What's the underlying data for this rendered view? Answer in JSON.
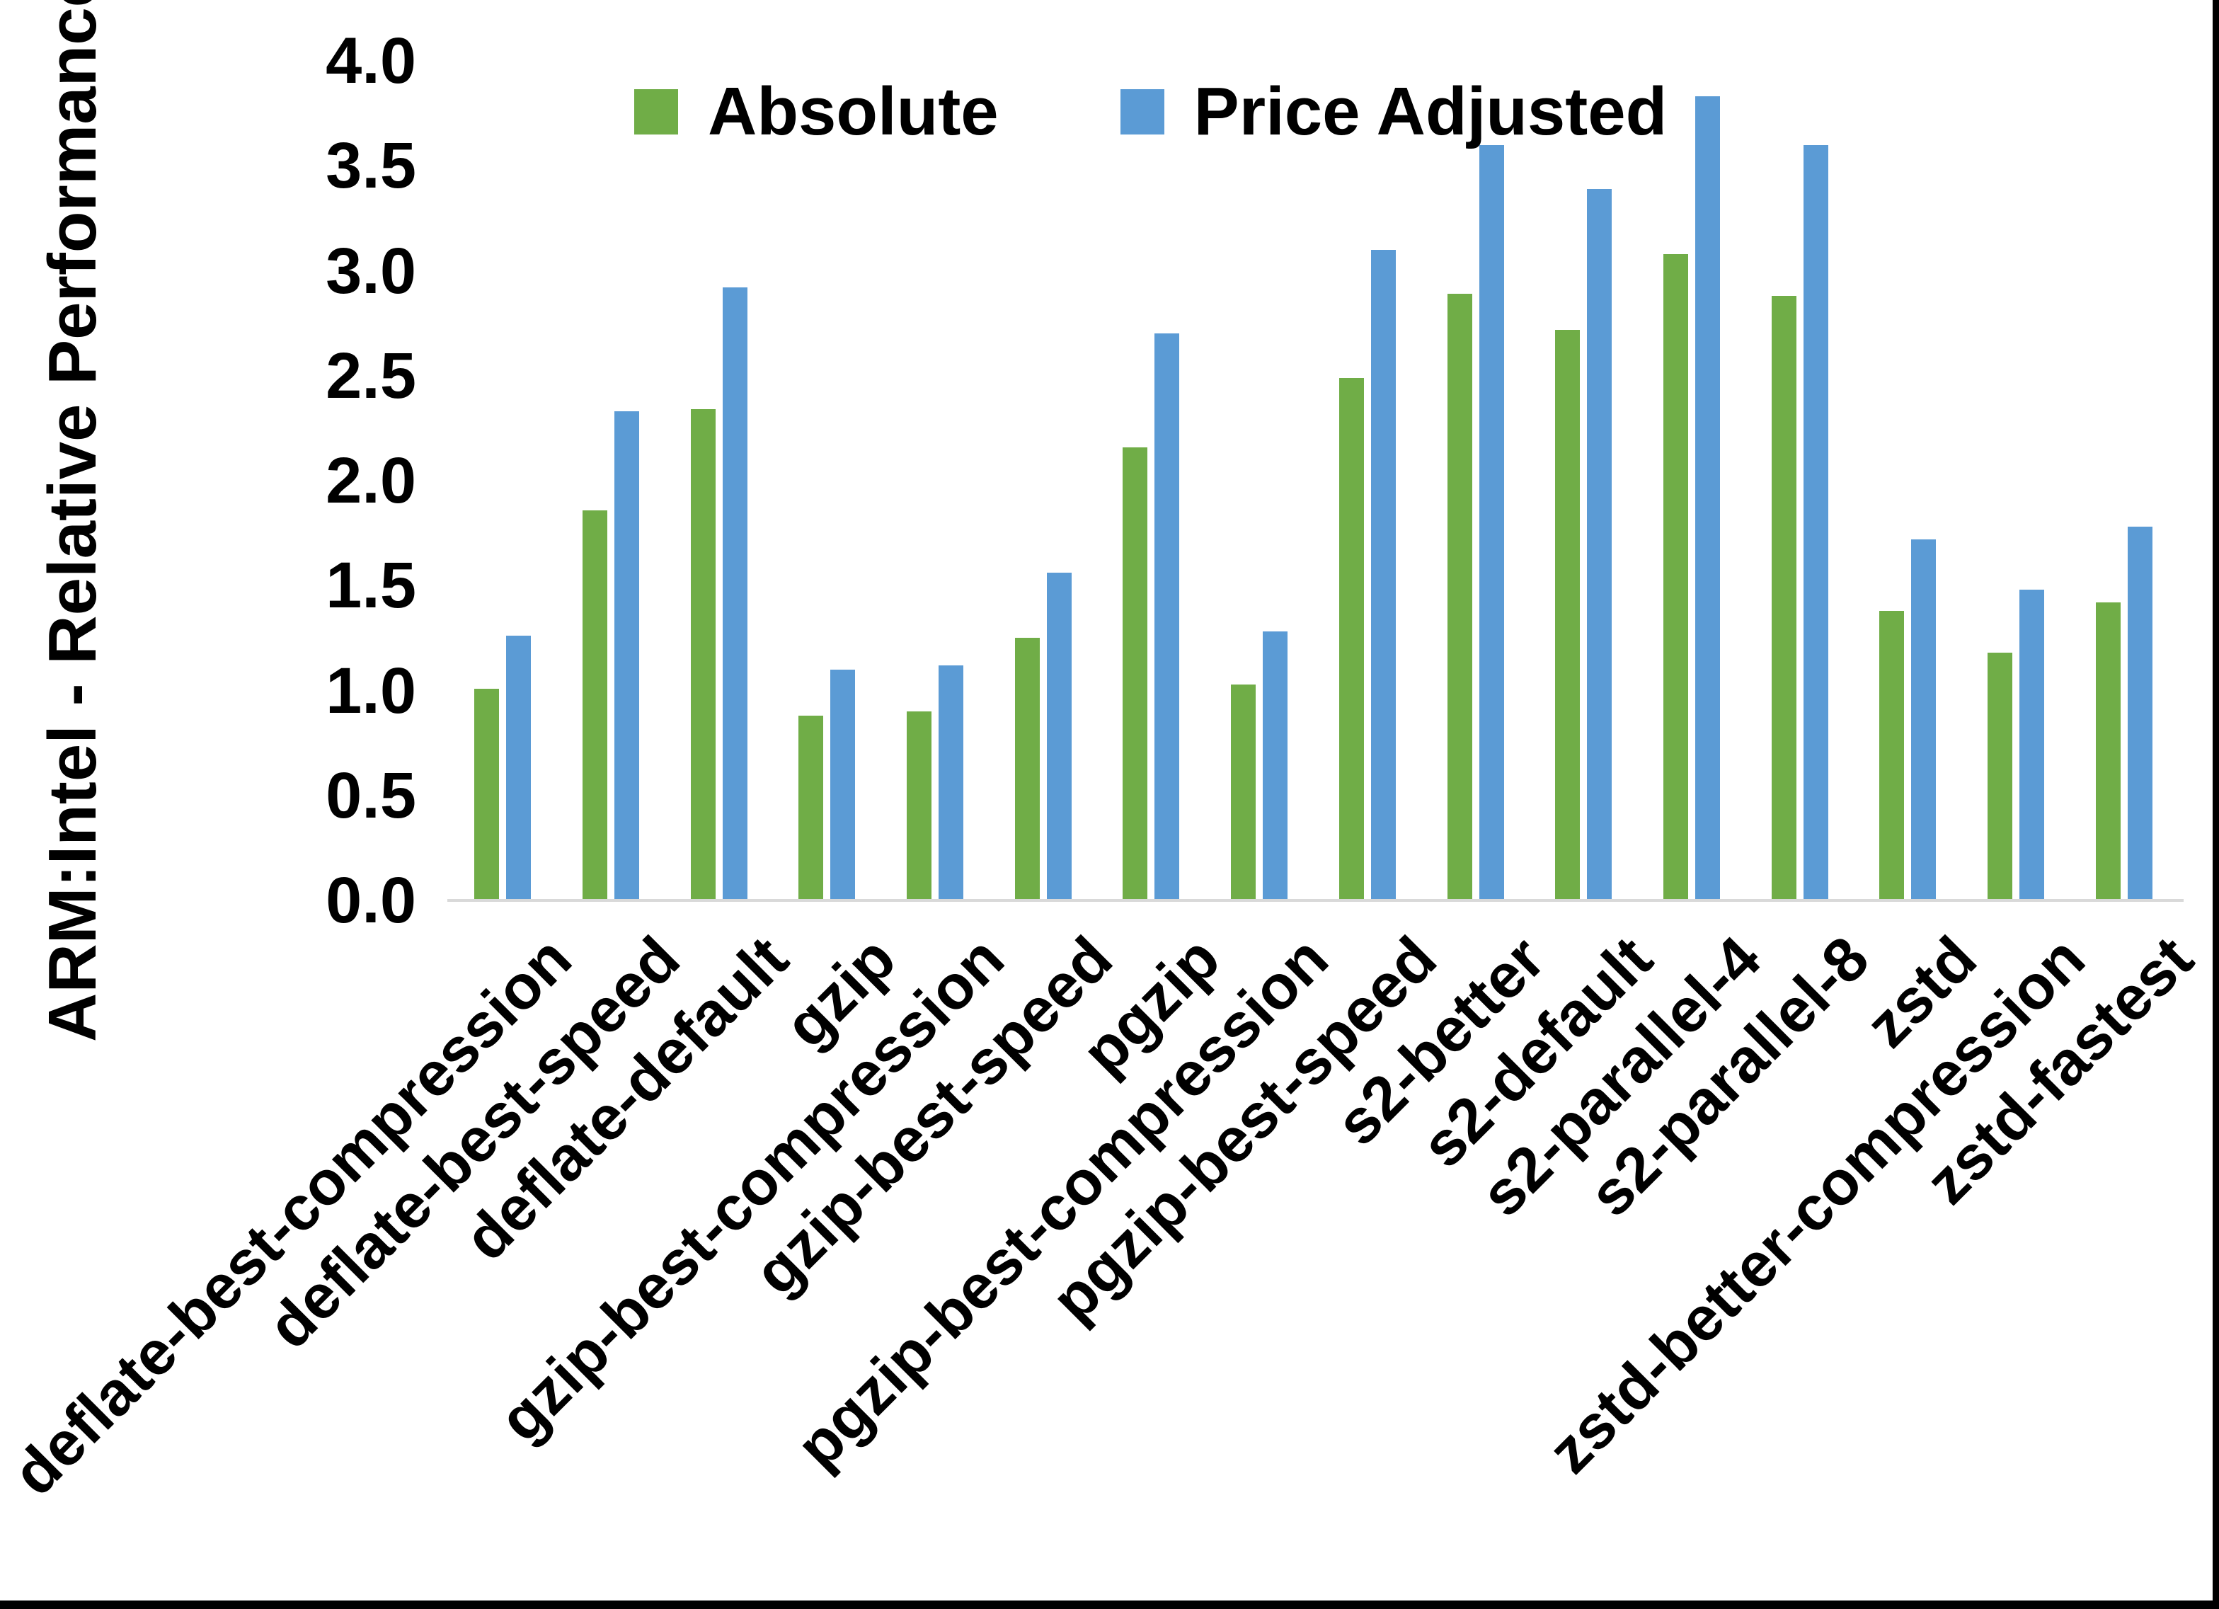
{
  "page": {
    "background": "#FFFFFF",
    "edge_border_color": "#000000"
  },
  "chart_data": {
    "type": "bar",
    "title": "",
    "xlabel": "",
    "ylabel": "ARM:Intel - Relative Performance",
    "ylim": [
      0.0,
      4.0
    ],
    "ytick_step": 0.5,
    "ytick_labels": [
      "0.0",
      "0.5",
      "1.0",
      "1.5",
      "2.0",
      "2.5",
      "3.0",
      "3.5",
      "4.0"
    ],
    "grid": false,
    "legend_position": "top",
    "axis_line_color": "#D9D9D9",
    "text_color": "#000000",
    "categories": [
      "deflate-best-compression",
      "deflate-best-speed",
      "deflate-default",
      "gzip",
      "gzip-best-compression",
      "gzip-best-speed",
      "pgzip",
      "pgzip-best-compression",
      "pgzip-best-speed",
      "s2-better",
      "s2-default",
      "s2-parallel-4",
      "s2-parallel-8",
      "zstd",
      "zstd-better-compression",
      "zstd-fastest"
    ],
    "series": [
      {
        "name": "Absolute",
        "color": "#70AD47",
        "values": [
          1.01,
          1.86,
          2.34,
          0.88,
          0.9,
          1.25,
          2.16,
          1.03,
          2.49,
          2.89,
          2.72,
          3.08,
          2.88,
          1.38,
          1.18,
          1.42
        ]
      },
      {
        "name": "Price Adjusted",
        "color": "#5B9BD5",
        "values": [
          1.26,
          2.33,
          2.92,
          1.1,
          1.12,
          1.56,
          2.7,
          1.28,
          3.1,
          3.6,
          3.39,
          3.83,
          3.6,
          1.72,
          1.48,
          1.78
        ]
      }
    ]
  }
}
